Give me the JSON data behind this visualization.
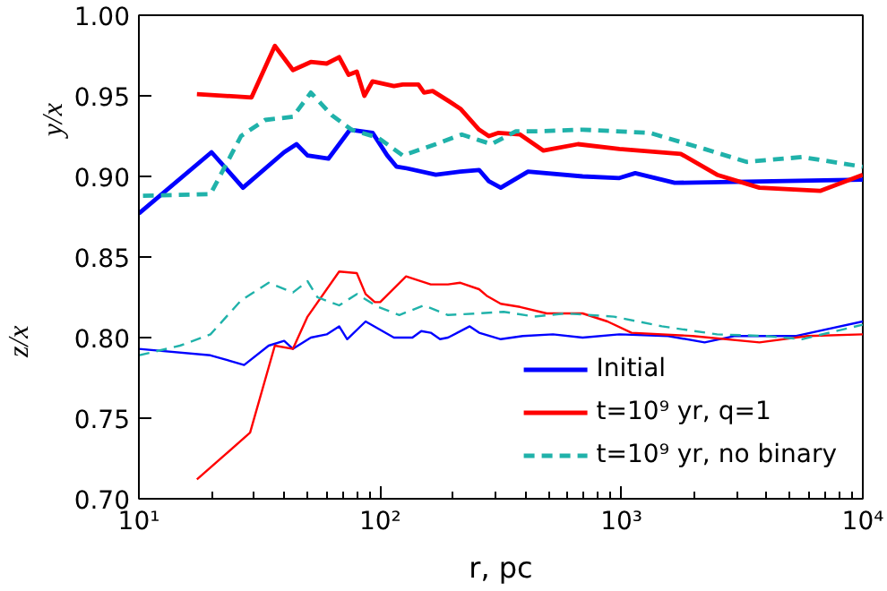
{
  "chart_data": {
    "type": "line",
    "xlabel": "r, pc",
    "ylabel": "y/x",
    "annotations": [
      "z/x"
    ],
    "log": "x",
    "xlim": [
      10,
      10000
    ],
    "ylim": [
      0.7,
      1.0
    ],
    "xticks": [
      {
        "value": 10,
        "label": "10¹"
      },
      {
        "value": 100,
        "label": "10²"
      },
      {
        "value": 1000,
        "label": "10³"
      },
      {
        "value": 10000,
        "label": "10⁴"
      }
    ],
    "yticks": [
      {
        "value": 0.7,
        "label": "0.70"
      },
      {
        "value": 0.75,
        "label": "0.75"
      },
      {
        "value": 0.8,
        "label": "0.80"
      },
      {
        "value": 0.85,
        "label": "0.85"
      },
      {
        "value": 0.9,
        "label": "0.90"
      },
      {
        "value": 0.95,
        "label": "0.95"
      },
      {
        "value": 1.0,
        "label": "1.00"
      }
    ],
    "grid": false,
    "legend": "bottom right",
    "marker": "none",
    "series": [
      {
        "name": "Initial",
        "color": "#0000ff",
        "line_style": "solid",
        "x": [
          10,
          20,
          27,
          40,
          45,
          50,
          61,
          75,
          93,
          107,
          117,
          129,
          170,
          215,
          257,
          282,
          316,
          410,
          690,
          980,
          1140,
          1660,
          10000
        ],
        "values": [
          0.877,
          0.915,
          0.893,
          0.915,
          0.92,
          0.913,
          0.911,
          0.929,
          0.927,
          0.913,
          0.906,
          0.905,
          0.901,
          0.903,
          0.904,
          0.897,
          0.893,
          0.903,
          0.9,
          0.899,
          0.902,
          0.896,
          0.898
        ]
      },
      {
        "name": "t=10⁹ yr, q=1",
        "color": "#ff0000",
        "line_style": "solid",
        "x": [
          17.4,
          29.3,
          36.6,
          43.5,
          51.6,
          60,
          67.6,
          74,
          80,
          86,
          93,
          114,
          124,
          144,
          152,
          165,
          191,
          215,
          257,
          282,
          308,
          380,
          475,
          660,
          980,
          1760,
          2490,
          3730,
          6650,
          10000
        ],
        "values": [
          0.951,
          0.949,
          0.981,
          0.966,
          0.971,
          0.97,
          0.974,
          0.963,
          0.965,
          0.95,
          0.959,
          0.956,
          0.957,
          0.957,
          0.952,
          0.953,
          0.947,
          0.942,
          0.929,
          0.925,
          0.927,
          0.926,
          0.916,
          0.92,
          0.917,
          0.914,
          0.901,
          0.893,
          0.891,
          0.901
        ]
      },
      {
        "name": "t=10⁹ yr, no binary",
        "color": "#20b2aa",
        "line_style": "dashed",
        "x": [
          10.4,
          19.8,
          26.5,
          33.3,
          43.5,
          51.6,
          63,
          76,
          98,
          124,
          170,
          218,
          289,
          365,
          460,
          690,
          1310,
          2210,
          3300,
          5600,
          10000
        ],
        "values": [
          0.888,
          0.889,
          0.925,
          0.935,
          0.937,
          0.952,
          0.938,
          0.929,
          0.924,
          0.913,
          0.92,
          0.926,
          0.92,
          0.928,
          0.928,
          0.929,
          0.927,
          0.917,
          0.909,
          0.912,
          0.906
        ]
      },
      {
        "color": "#0000ff",
        "line_style": "solid",
        "x": [
          10,
          19.8,
          27.3,
          34.5,
          40,
          43.5,
          51.6,
          60,
          67.6,
          73,
          87,
          114,
          136,
          148,
          162,
          177,
          191,
          235,
          257,
          316,
          390,
          520,
          690,
          980,
          1560,
          2210,
          2960,
          5300,
          10000
        ],
        "values": [
          0.793,
          0.789,
          0.783,
          0.795,
          0.798,
          0.793,
          0.8,
          0.802,
          0.807,
          0.799,
          0.81,
          0.8,
          0.8,
          0.804,
          0.803,
          0.799,
          0.8,
          0.807,
          0.803,
          0.799,
          0.801,
          0.802,
          0.8,
          0.802,
          0.801,
          0.797,
          0.801,
          0.801,
          0.81
        ]
      },
      {
        "color": "#ff0000",
        "line_style": "solid",
        "x": [
          17.4,
          28.9,
          36.6,
          43.5,
          50,
          67.6,
          80,
          87,
          95,
          100,
          128,
          162,
          191,
          215,
          257,
          276,
          316,
          380,
          490,
          690,
          875,
          1100,
          1970,
          3730,
          5900,
          10000
        ],
        "values": [
          0.712,
          0.741,
          0.795,
          0.793,
          0.813,
          0.841,
          0.84,
          0.827,
          0.822,
          0.822,
          0.838,
          0.833,
          0.833,
          0.834,
          0.83,
          0.826,
          0.821,
          0.819,
          0.815,
          0.815,
          0.81,
          0.803,
          0.801,
          0.797,
          0.801,
          0.802
        ]
      },
      {
        "color": "#20b2aa",
        "line_style": "dashed",
        "x": [
          10,
          14.8,
          19.8,
          26.5,
          34.5,
          43.5,
          50,
          55,
          67.6,
          80,
          98,
          120,
          152,
          191,
          255,
          325,
          435,
          585,
          930,
          1470,
          2490,
          3960,
          5600,
          10000
        ],
        "values": [
          0.789,
          0.795,
          0.802,
          0.823,
          0.834,
          0.828,
          0.835,
          0.825,
          0.82,
          0.827,
          0.819,
          0.814,
          0.82,
          0.814,
          0.815,
          0.816,
          0.813,
          0.815,
          0.813,
          0.807,
          0.802,
          0.801,
          0.799,
          0.808
        ]
      }
    ]
  }
}
